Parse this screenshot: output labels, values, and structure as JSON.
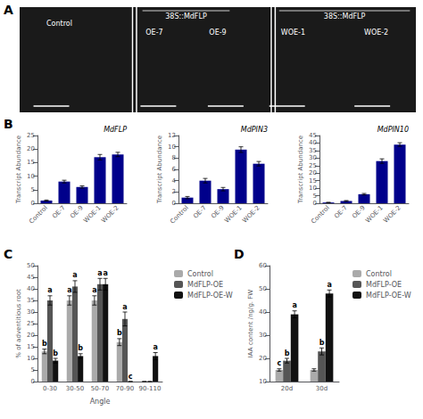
{
  "chart_data": [
    {
      "type": "photo",
      "title": "A",
      "color": "#000000",
      "annotations": [
        "Control",
        "38S::MdFLP",
        "OE-7",
        "OE-9",
        "38S::MdFLP",
        "WOE-1",
        "WOE-2"
      ]
    },
    {
      "type": "bar",
      "title": "B",
      "annotations": [
        "MdFLP"
      ],
      "categories": [
        "Control",
        "OE-7",
        "OE-9",
        "WOE-1",
        "WOE-2"
      ],
      "values": [
        1,
        8,
        6,
        17,
        18
      ],
      "errors": [
        0.2,
        0.5,
        0.4,
        1.0,
        0.8
      ],
      "color": "#00008B",
      "ylabel": "Transcript Abundance",
      "ylim": [
        0,
        25
      ],
      "yticks": [
        0,
        5,
        10,
        15,
        20,
        25
      ],
      "grid": false
    },
    {
      "type": "bar",
      "annotations": [
        "MdPIN3"
      ],
      "categories": [
        "Control",
        "OE-7",
        "OE-9",
        "WOE-1",
        "WOE-2"
      ],
      "values": [
        1,
        4,
        2.5,
        9.5,
        7
      ],
      "errors": [
        0.2,
        0.4,
        0.3,
        0.5,
        0.4
      ],
      "color": "#00008B",
      "ylabel": "Transcript Abundance",
      "ylim": [
        0,
        12
      ],
      "yticks": [
        0,
        2,
        4,
        6,
        8,
        10,
        12
      ],
      "grid": false
    },
    {
      "type": "bar",
      "annotations": [
        "MdPIN10"
      ],
      "categories": [
        "Control",
        "OE-7",
        "OE-9",
        "WOE-1",
        "WOE-2"
      ],
      "values": [
        0.5,
        1.5,
        6,
        28,
        39
      ],
      "errors": [
        0.1,
        0.3,
        0.5,
        1.5,
        1.2
      ],
      "color": "#00008B",
      "ylabel": "Transcript Abundance",
      "ylim": [
        0,
        45
      ],
      "yticks": [
        0,
        5,
        10,
        15,
        20,
        25,
        30,
        35,
        40,
        45
      ],
      "grid": false
    },
    {
      "type": "bar",
      "title": "C",
      "xlabel": "Angle",
      "ylabel": "% of adventitious root",
      "categories": [
        "0-30",
        "30-50",
        "50-70",
        "70-90",
        "90-110"
      ],
      "series": [
        {
          "name": "Control",
          "color": "#aaaaaa",
          "values": [
            13,
            35,
            35,
            17,
            0
          ],
          "errors": [
            1.0,
            2.0,
            2.0,
            1.5,
            0
          ],
          "annotations": [
            "b",
            "a",
            "a",
            "b",
            null
          ]
        },
        {
          "name": "MdFLP-OE",
          "color": "#555555",
          "values": [
            35,
            41,
            42,
            27,
            0
          ],
          "errors": [
            2.0,
            2.5,
            2.5,
            3.0,
            0
          ],
          "annotations": [
            "a",
            "a",
            "a",
            "a",
            null
          ]
        },
        {
          "name": "MdFLP-OE-W",
          "color": "#111111",
          "values": [
            9,
            11,
            42,
            0,
            11
          ],
          "errors": [
            1.0,
            1.0,
            2.5,
            0,
            1.5
          ],
          "annotations": [
            "b",
            "b",
            "a",
            "c",
            "a"
          ]
        }
      ],
      "ylim": [
        0,
        50
      ],
      "yticks": [
        0,
        5,
        10,
        15,
        20,
        25,
        30,
        35,
        40,
        45,
        50
      ],
      "grid": false,
      "legend": "right"
    },
    {
      "type": "bar",
      "title": "D",
      "ylabel": "IAA content /ng/g. FW",
      "categories": [
        "20d",
        "30d"
      ],
      "series": [
        {
          "name": "Control",
          "color": "#aaaaaa",
          "values": [
            15,
            15
          ],
          "errors": [
            0.5,
            0.5
          ],
          "annotations": [
            "c",
            null
          ]
        },
        {
          "name": "MdFLP-OE",
          "color": "#555555",
          "values": [
            19,
            23
          ],
          "errors": [
            1.0,
            1.5
          ],
          "annotations": [
            "b",
            "b"
          ]
        },
        {
          "name": "MdFLP-OE-W",
          "color": "#111111",
          "values": [
            39,
            48
          ],
          "errors": [
            1.5,
            1.5
          ],
          "annotations": [
            "a",
            "a"
          ]
        }
      ],
      "ylim": [
        10,
        60
      ],
      "yticks": [
        10,
        20,
        30,
        40,
        50,
        60
      ],
      "grid": false,
      "legend": "right"
    }
  ]
}
